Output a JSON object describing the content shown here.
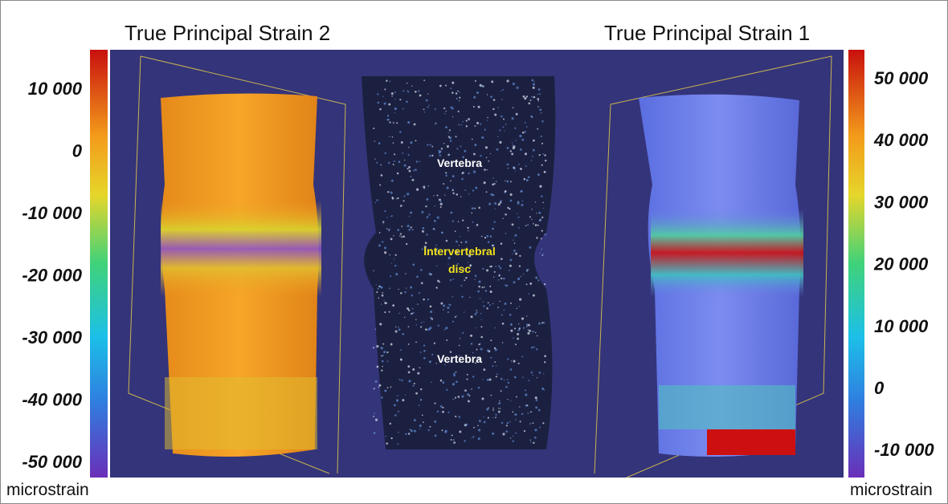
{
  "left_panel": {
    "title": "True Principal Strain 2",
    "colorbar": {
      "labels": [
        "10 000",
        "0",
        "-10 000",
        "-20 000",
        "-30 000",
        "-40 000",
        "-50 000"
      ],
      "unit": "microstrain"
    }
  },
  "right_panel": {
    "title": "True Principal Strain 1",
    "colorbar": {
      "labels": [
        "50 000",
        "40 000",
        "30 000",
        "20 000",
        "10 000",
        "0",
        "-10 000"
      ],
      "unit": "microstrain"
    }
  },
  "center_photo": {
    "labels": [
      "Vertebra",
      "Intervertebral",
      "disc",
      "Vertebra"
    ]
  }
}
